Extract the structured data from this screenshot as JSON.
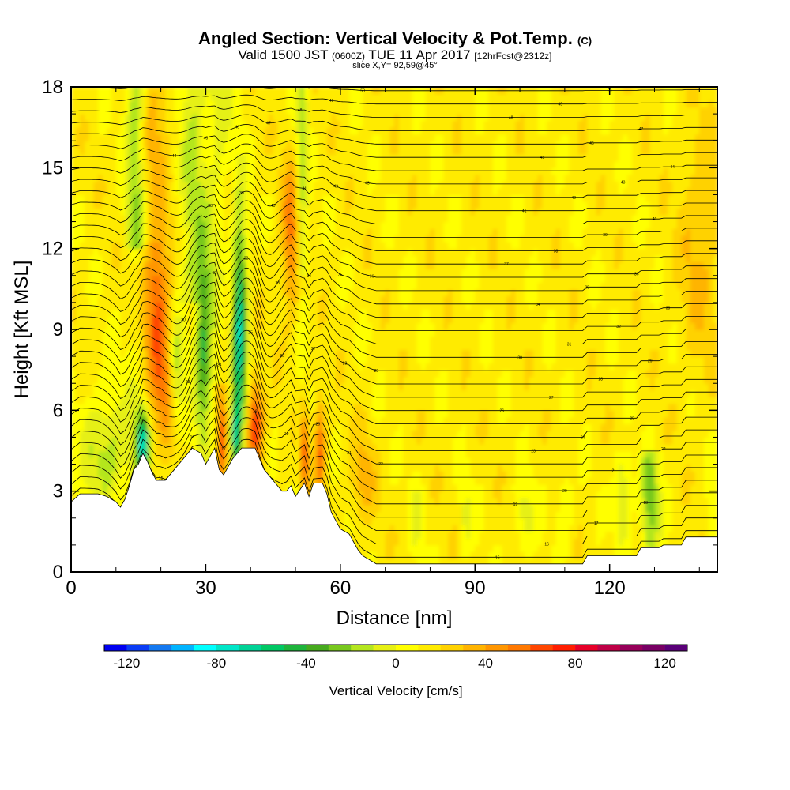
{
  "header": {
    "title": "Angled Section: Vertical Velocity & Pot.Temp.",
    "title_unit": "(C)",
    "valid_prefix": "Valid 1500 JST",
    "valid_utc": "(0600Z)",
    "valid_date": "TUE 11 Apr 2017",
    "forecast": "[12hrFcst@2312z]",
    "slice": "slice X,Y= 92,59@45°"
  },
  "chart_data": {
    "type": "heatmap",
    "title": "Angled Section: Vertical Velocity & Pot.Temp. (C)",
    "xlabel": "Distance [nm]",
    "ylabel": "Height [Kft MSL]",
    "xlim": [
      0,
      144
    ],
    "ylim": [
      0,
      18
    ],
    "x_ticks": [
      0,
      30,
      60,
      90,
      120
    ],
    "y_ticks": [
      0,
      3,
      6,
      9,
      12,
      15,
      18
    ],
    "x_tick_labels": [
      "0",
      "30",
      "60",
      "90",
      "120"
    ],
    "y_tick_labels": [
      "0",
      "3",
      "6",
      "9",
      "12",
      "15",
      "18"
    ],
    "colorbar": {
      "label": "Vertical Velocity [cm/s]",
      "min": -130,
      "max": 130,
      "step": 10,
      "tick_values": [
        -120,
        -80,
        -40,
        0,
        40,
        80,
        120
      ],
      "tick_labels": [
        "-120",
        "-80",
        "-40",
        "0",
        "40",
        "80",
        "120"
      ],
      "colors": [
        "#0000f0",
        "#0a3cf5",
        "#1478f0",
        "#00b4ff",
        "#00ffff",
        "#00e6c8",
        "#00d296",
        "#00c864",
        "#1eb43c",
        "#46aa1e",
        "#78c81e",
        "#b4e61e",
        "#e6f014",
        "#ffff00",
        "#ffeb00",
        "#ffd200",
        "#ffb400",
        "#ff9600",
        "#ff7800",
        "#ff4600",
        "#ff1e00",
        "#e60028",
        "#be0046",
        "#96005a",
        "#780064",
        "#5a0078"
      ]
    },
    "terrain_height_kft": [
      [
        0,
        2.6
      ],
      [
        2,
        2.9
      ],
      [
        4,
        2.9
      ],
      [
        6,
        2.9
      ],
      [
        8,
        2.8
      ],
      [
        10,
        2.6
      ],
      [
        11,
        2.4
      ],
      [
        12,
        2.7
      ],
      [
        13,
        3.2
      ],
      [
        14,
        3.8
      ],
      [
        15,
        4.0
      ],
      [
        16,
        4.4
      ],
      [
        17,
        4.1
      ],
      [
        18,
        3.7
      ],
      [
        19,
        3.4
      ],
      [
        21,
        3.4
      ],
      [
        23,
        3.8
      ],
      [
        25,
        4.2
      ],
      [
        27,
        4.6
      ],
      [
        29,
        4.4
      ],
      [
        30,
        4.0
      ],
      [
        32,
        4.6
      ],
      [
        33,
        3.8
      ],
      [
        34,
        3.6
      ],
      [
        36,
        4.2
      ],
      [
        38,
        4.6
      ],
      [
        41,
        4.6
      ],
      [
        43,
        3.8
      ],
      [
        45,
        3.4
      ],
      [
        47,
        3.0
      ],
      [
        48,
        3.0
      ],
      [
        49,
        3.2
      ],
      [
        50,
        2.8
      ],
      [
        52,
        3.3
      ],
      [
        53,
        2.8
      ],
      [
        54,
        3.3
      ],
      [
        56,
        3.3
      ],
      [
        57,
        2.9
      ],
      [
        58,
        2.2
      ],
      [
        59,
        1.9
      ],
      [
        60,
        1.6
      ],
      [
        62,
        1.4
      ],
      [
        63,
        1.1
      ],
      [
        64,
        0.8
      ],
      [
        65,
        0.6
      ],
      [
        67,
        0.4
      ],
      [
        68,
        0.3
      ],
      [
        114,
        0.3
      ],
      [
        115,
        0.6
      ],
      [
        126,
        0.6
      ],
      [
        127,
        0.9
      ],
      [
        131,
        0.9
      ],
      [
        132,
        1.0
      ],
      [
        136,
        1.0
      ],
      [
        137,
        1.3
      ],
      [
        144,
        1.3
      ]
    ],
    "pot_temp_contours": {
      "levels": [
        "15",
        "16",
        "17",
        "18",
        "19",
        "20",
        "21",
        "22",
        "23",
        "24",
        "25",
        "26",
        "27",
        "28",
        "29",
        "30",
        "31",
        "32",
        "33",
        "34",
        "35",
        "36",
        "37",
        "38",
        "39",
        "40",
        "41",
        "42",
        "43",
        "44",
        "45",
        "46",
        "47",
        "48",
        "49",
        "50",
        "51"
      ]
    }
  }
}
